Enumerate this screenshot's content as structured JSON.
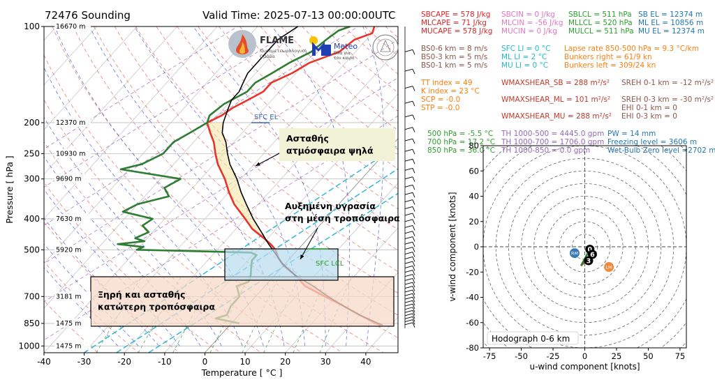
{
  "header": {
    "station_title": "72476 Sounding",
    "valid_time": "Valid Time: 2025-07-13 00:00:00UTC"
  },
  "logos": {
    "flame_name": "FLAME",
    "flame_sub1": "Πυρομετεωρολογική",
    "flame_sub2": "Ομάδα",
    "meteo_name": "Meteo",
    "meteo_sub1": "Όλα για",
    "meteo_sub2": "τον καιρό"
  },
  "indices": [
    {
      "text": "SBCAPE = 578 J/kg",
      "color": "#d62728",
      "col": 0,
      "row": 0
    },
    {
      "text": "MLCAPE = 71 J/kg",
      "color": "#d62728",
      "col": 0,
      "row": 1
    },
    {
      "text": "MUCAPE = 578 J/kg",
      "color": "#d62728",
      "col": 0,
      "row": 2
    },
    {
      "text": "SBCIN = 0 J/kg",
      "color": "#e377c2",
      "col": 1,
      "row": 0
    },
    {
      "text": "MLCIN = -56 J/kg",
      "color": "#e377c2",
      "col": 1,
      "row": 1
    },
    {
      "text": "MUCIN = 0 J/kg",
      "color": "#e377c2",
      "col": 1,
      "row": 2
    },
    {
      "text": "SBLCL = 511 hPa",
      "color": "#2ca02c",
      "col": 2,
      "row": 0
    },
    {
      "text": "MLLCL = 520 hPa",
      "color": "#2ca02c",
      "col": 2,
      "row": 1
    },
    {
      "text": "MULCL = 511 hPa",
      "color": "#2ca02c",
      "col": 2,
      "row": 2
    },
    {
      "text": "SB EL = 12374 m",
      "color": "#1f77b4",
      "col": 3,
      "row": 0
    },
    {
      "text": "ML EL = 10856 m",
      "color": "#1f77b4",
      "col": 3,
      "row": 1
    },
    {
      "text": "MU EL = 12374 m",
      "color": "#1f77b4",
      "col": 3,
      "row": 2
    },
    {
      "text": "BS0-6 km = 8 m/s",
      "color": "#8c564b",
      "col": 0,
      "row": 4
    },
    {
      "text": "BS0-3 km = 5 m/s",
      "color": "#8c564b",
      "col": 0,
      "row": 5
    },
    {
      "text": "BS0-1 km = 5 m/s",
      "color": "#8c564b",
      "col": 0,
      "row": 6
    },
    {
      "text": "SFC LI = 0 °C",
      "color": "#17becf",
      "col": 1,
      "row": 4
    },
    {
      "text": "ML LI = 2 °C",
      "color": "#17becf",
      "col": 1,
      "row": 5
    },
    {
      "text": "MU LI = 0 °C",
      "color": "#17becf",
      "col": 1,
      "row": 6
    },
    {
      "text": "Lapse rate 850-500 hPa = 9.3 °C/km",
      "color": "#ff7f0e",
      "col": 2,
      "row": 4
    },
    {
      "text": "Bunkers right = 61/9 kn",
      "color": "#ff7f0e",
      "col": 2,
      "row": 5
    },
    {
      "text": "Bunkers left = 309/24 kn",
      "color": "#ff7f0e",
      "col": 2,
      "row": 6
    },
    {
      "text": "TT index = 49",
      "color": "#ff7f0e",
      "col": 0,
      "row": 8
    },
    {
      "text": "K index = 23 °C",
      "color": "#ff7f0e",
      "col": 0,
      "row": 9
    },
    {
      "text": "SCP = -0.0",
      "color": "#ff7f0e",
      "col": 0,
      "row": 10
    },
    {
      "text": "STP = -0.0",
      "color": "#ff7f0e",
      "col": 0,
      "row": 11
    },
    {
      "text": "WMAXSHEAR_SB = 288 m²/s²",
      "color": "#c0392b",
      "col": 1,
      "row": 8
    },
    {
      "text": "WMAXSHEAR_ML = 101 m²/s²",
      "color": "#c0392b",
      "col": 1,
      "row": 10
    },
    {
      "text": "WMAXSHEAR_MU = 288 m²/s²",
      "color": "#c0392b",
      "col": 1,
      "row": 12
    },
    {
      "text": "SREH 0-1 km = -12 m²/s²",
      "color": "#8c564b",
      "col": 3,
      "row": 8
    },
    {
      "text": "SREH 0-3 km = -30 m²/s²",
      "color": "#8c564b",
      "col": 3,
      "row": 10
    },
    {
      "text": "EHI 0-1 km = 0",
      "color": "#8c564b",
      "col": 3,
      "row": 11
    },
    {
      "text": "EHI 0-3 km = 0",
      "color": "#8c564b",
      "col": 3,
      "row": 12
    },
    {
      "text": "500 hPa = -5.5 °C",
      "color": "#2ca02c",
      "col": 0,
      "row": 14
    },
    {
      "text": "700 hPa = 17.2 °C",
      "color": "#2ca02c",
      "col": 0,
      "row": 15
    },
    {
      "text": "850 hPa = 36.0 °C",
      "color": "#2ca02c",
      "col": 0,
      "row": 16
    },
    {
      "text": "TH 1000-500 = 4445.0 gpm",
      "color": "#9467bd",
      "col": 1,
      "row": 14
    },
    {
      "text": "TH 1000-700 = 1706.0 gpm",
      "color": "#9467bd",
      "col": 1,
      "row": 15
    },
    {
      "text": "TH 1000-850 = 0.0 gpm",
      "color": "#9467bd",
      "col": 1,
      "row": 16
    },
    {
      "text": "PW = 14 mm",
      "color": "#1f77b4",
      "col": 3,
      "row": 14
    },
    {
      "text": "Freezing level = 3606 m",
      "color": "#1f77b4",
      "col": 3,
      "row": 15
    },
    {
      "text": "Wet-Bulb Zero level =2702 m",
      "color": "#1f77b4",
      "col": 3,
      "row": 16
    }
  ],
  "chart_data": [
    {
      "type": "line",
      "chart_kind": "skew-T log-P sounding",
      "xlabel": "Temperature [ °C ]",
      "ylabel": "Pressure [ hPa ]",
      "xlim": [
        -40,
        48
      ],
      "ylim": [
        1050,
        100
      ],
      "y_scale": "log",
      "x_ticks": [
        -40,
        -30,
        -20,
        -10,
        0,
        10,
        20,
        30,
        40
      ],
      "y_ticks": [
        100,
        200,
        250,
        300,
        400,
        500,
        700,
        850,
        1000
      ],
      "height_labels": [
        {
          "p": 100,
          "text": "16670 m"
        },
        {
          "p": 200,
          "text": "12370 m"
        },
        {
          "p": 250,
          "text": "10930 m"
        },
        {
          "p": 300,
          "text": "9690 m"
        },
        {
          "p": 400,
          "text": "7630 m"
        },
        {
          "p": 500,
          "text": "5920 m"
        },
        {
          "p": 700,
          "text": "3181 m"
        },
        {
          "p": 850,
          "text": "1475 m"
        },
        {
          "p": 1000,
          "text": "1475 m"
        }
      ],
      "series": [
        {
          "name": "temperature",
          "color": "#e8332a",
          "points": [
            [
              100,
              -31
            ],
            [
              105,
              -30
            ],
            [
              110,
              -33
            ],
            [
              120,
              -34
            ],
            [
              130,
              -39
            ],
            [
              140,
              -41
            ],
            [
              150,
              -44
            ],
            [
              160,
              -44
            ],
            [
              170,
              -46
            ],
            [
              180,
              -48
            ],
            [
              190,
              -49
            ],
            [
              200,
              -51
            ],
            [
              215,
              -48
            ],
            [
              230,
              -45
            ],
            [
              250,
              -42
            ],
            [
              270,
              -39
            ],
            [
              300,
              -34
            ],
            [
              330,
              -30
            ],
            [
              360,
              -26
            ],
            [
              400,
              -20
            ],
            [
              430,
              -16
            ],
            [
              460,
              -11
            ],
            [
              480,
              -8
            ],
            [
              500,
              -5.5
            ],
            [
              530,
              -3
            ],
            [
              560,
              0
            ],
            [
              600,
              5
            ],
            [
              650,
              10
            ],
            [
              700,
              17.2
            ],
            [
              750,
              24
            ],
            [
              800,
              30
            ],
            [
              850,
              36
            ],
            [
              860,
              37.5
            ]
          ]
        },
        {
          "name": "dewpoint",
          "color": "#2e7d32",
          "points": [
            [
              100,
              -37
            ],
            [
              103,
              -39
            ],
            [
              110,
              -40
            ],
            [
              120,
              -41
            ],
            [
              130,
              -44
            ],
            [
              140,
              -46
            ],
            [
              150,
              -48
            ],
            [
              160,
              -48
            ],
            [
              175,
              -51
            ],
            [
              190,
              -52
            ],
            [
              200,
              -51
            ],
            [
              215,
              -53
            ],
            [
              230,
              -55
            ],
            [
              250,
              -55
            ],
            [
              270,
              -58
            ],
            [
              280,
              -62
            ],
            [
              300,
              -45
            ],
            [
              320,
              -47
            ],
            [
              340,
              -44
            ],
            [
              360,
              -50
            ],
            [
              380,
              -52
            ],
            [
              400,
              -43
            ],
            [
              420,
              -44
            ],
            [
              440,
              -41
            ],
            [
              460,
              -43
            ],
            [
              470,
              -40
            ],
            [
              480,
              -46
            ],
            [
              490,
              -39
            ],
            [
              500,
              -40
            ],
            [
              510,
              -11
            ],
            [
              520,
              -9
            ],
            [
              540,
              -9
            ],
            [
              560,
              -8
            ],
            [
              600,
              -6
            ],
            [
              630,
              -5
            ],
            [
              650,
              -7
            ],
            [
              700,
              -4
            ],
            [
              750,
              -4
            ],
            [
              800,
              -3
            ],
            [
              820,
              -5
            ],
            [
              850,
              2
            ]
          ]
        },
        {
          "name": "parcel",
          "color": "#000000",
          "points": [
            [
              100,
              -50
            ],
            [
              110,
              -52
            ],
            [
              125,
              -52
            ],
            [
              140,
              -52
            ],
            [
              150,
              -51
            ],
            [
              160,
              -50
            ],
            [
              170,
              -50
            ],
            [
              180,
              -49
            ],
            [
              200,
              -47
            ],
            [
              215,
              -45
            ],
            [
              230,
              -42
            ],
            [
              250,
              -39
            ],
            [
              270,
              -36
            ],
            [
              300,
              -31
            ],
            [
              330,
              -27
            ],
            [
              360,
              -23
            ],
            [
              400,
              -18
            ],
            [
              440,
              -13
            ],
            [
              480,
              -8.5
            ],
            [
              511,
              -5
            ],
            [
              550,
              -1
            ],
            [
              600,
              5
            ],
            [
              650,
              12
            ],
            [
              700,
              18
            ],
            [
              750,
              24
            ],
            [
              800,
              30
            ],
            [
              850,
              36.5
            ],
            [
              860,
              38
            ]
          ]
        }
      ],
      "annotations": [
        {
          "text": "SFC EL",
          "p": 200,
          "t": -2
        },
        {
          "text": "SFC LCL",
          "p": 550,
          "t": 0
        },
        {
          "text": "Ασταθής\nατμόσφαιρα ψηλά",
          "kind": "box",
          "color": "#f0f0cc"
        },
        {
          "text": "Αυξημένη υγρασία\nστη μέση τροπόσφαιρα",
          "kind": "text"
        },
        {
          "text": "Ξηρή και ασταθής\nκατώτερη τροπόσφαιρα",
          "kind": "box",
          "color": "#f6d5c2"
        }
      ]
    },
    {
      "type": "line",
      "chart_kind": "hodograph",
      "title": "Hodograph 0-6 km",
      "xlabel": "u-wind component [knots]",
      "ylabel": "v-wind component [knots]",
      "xlim": [
        -80,
        80
      ],
      "ylim": [
        -80,
        80
      ],
      "x_ticks": [
        -75,
        -50,
        -25,
        0,
        25,
        50,
        75
      ],
      "y_ticks": [
        -80,
        -60,
        -40,
        -20,
        0,
        20,
        40,
        60,
        80
      ],
      "ring_spacing_knots": 10,
      "hodo_line": [
        [
          4,
          -2
        ],
        [
          6,
          -5
        ],
        [
          8,
          -7
        ],
        [
          3,
          -10
        ],
        [
          0,
          -12
        ],
        [
          -3,
          -15
        ]
      ],
      "height_markers": [
        {
          "label": "0",
          "u": 4,
          "v": -2
        },
        {
          "label": "6",
          "u": 6,
          "v": -6
        },
        {
          "label": "3",
          "u": 3,
          "v": -11
        }
      ],
      "storm_motion": [
        {
          "label": "RM",
          "u": -8,
          "v": -5,
          "color": "#3a78b5"
        },
        {
          "label": "LM",
          "u": 19,
          "v": -16,
          "color": "#f08a3c"
        }
      ]
    }
  ]
}
